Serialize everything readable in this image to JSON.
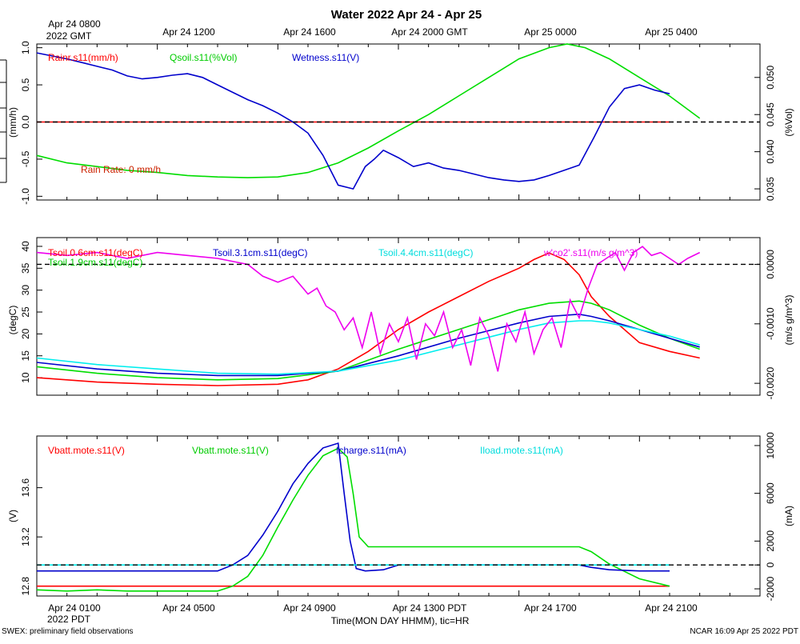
{
  "title": "Water 2022 Apr 24 - Apr 25",
  "gmt_ticks": [
    "Apr 24 0800",
    "Apr 24 1200",
    "Apr 24 1600",
    "Apr 24 2000 GMT",
    "Apr 25 0000",
    "Apr 25 0400"
  ],
  "gmt_year": "2022 GMT",
  "pdt_ticks": [
    "Apr 24 0100",
    "Apr 24 0500",
    "Apr 24 0900",
    "Apr 24 1300 PDT",
    "Apr 24 1700",
    "Apr 24 2100"
  ],
  "pdt_year": "2022 PDT",
  "xlabel": "Time(MON DAY HHMM), tic=HR",
  "footer_left": "SWEX: preliminary field observations",
  "footer_right": "NCAR 16:09 Apr 25 2022 PDT",
  "x_range_hours": [
    0,
    24
  ],
  "chart_data": [
    {
      "type": "line",
      "panel": "water",
      "ylabel_left": "(mm/h)",
      "ylabel_right": "(%Vol)",
      "ylim_left": [
        -1.05,
        1.05
      ],
      "ylim_right": [
        0.0335,
        0.0545
      ],
      "yticks_left": [
        "-1.0",
        "-0.5",
        "0.0",
        "0.5",
        "1.0"
      ],
      "yticks_right": [
        "0.035",
        "0.040",
        "0.045",
        "0.050"
      ],
      "annotation": "Rain Rate: 0 mm/h",
      "zero_line_left": 0,
      "series": [
        {
          "name": "Rainr.s11(mm/h)",
          "color": "#ff0000",
          "axis": "left",
          "x": [
            0,
            18,
            18.4,
            21
          ],
          "y": [
            0,
            0,
            0,
            0
          ]
        },
        {
          "name": "Qsoil.s11(%Vol)",
          "color": "#00dd00",
          "axis": "right",
          "x": [
            0,
            1,
            2,
            3,
            4,
            5,
            6,
            7,
            8,
            9,
            10,
            11,
            12,
            13,
            14,
            15,
            16,
            17,
            17.6,
            18.2,
            19,
            20,
            21,
            22
          ],
          "y": [
            0.0395,
            0.0385,
            0.038,
            0.0375,
            0.0372,
            0.0368,
            0.0366,
            0.0365,
            0.0366,
            0.0372,
            0.0385,
            0.0405,
            0.0428,
            0.045,
            0.0475,
            0.05,
            0.0525,
            0.054,
            0.0545,
            0.054,
            0.0525,
            0.05,
            0.0475,
            0.0445
          ]
        },
        {
          "name": "Wetness.s11(V)",
          "color": "#0000cc",
          "axis": "left",
          "x": [
            0,
            1,
            1.5,
            2,
            2.5,
            3,
            3.5,
            4,
            4.5,
            5,
            5.5,
            6,
            6.5,
            7,
            7.5,
            8,
            8.5,
            9,
            9.5,
            10,
            10.5,
            10.9,
            11.2,
            11.5,
            12,
            12.5,
            13,
            13.5,
            14,
            14.5,
            15,
            15.5,
            16,
            16.5,
            17,
            17.5,
            18,
            18.5,
            19,
            19.5,
            20,
            20.5,
            21
          ],
          "y": [
            0.93,
            0.85,
            0.8,
            0.75,
            0.7,
            0.62,
            0.58,
            0.6,
            0.63,
            0.65,
            0.6,
            0.5,
            0.4,
            0.3,
            0.22,
            0.12,
            0.0,
            -0.15,
            -0.45,
            -0.85,
            -0.9,
            -0.6,
            -0.5,
            -0.38,
            -0.48,
            -0.6,
            -0.55,
            -0.62,
            -0.65,
            -0.7,
            -0.75,
            -0.78,
            -0.8,
            -0.78,
            -0.72,
            -0.65,
            -0.58,
            -0.2,
            0.2,
            0.45,
            0.5,
            0.43,
            0.38
          ]
        }
      ]
    },
    {
      "type": "line",
      "panel": "soil-temperature",
      "ylabel_left": "(degC)",
      "ylabel_right": "(m/s g/m^3)",
      "ylim_left": [
        6,
        42
      ],
      "ylim_right": [
        -0.0022,
        0.00045
      ],
      "yticks_left": [
        "10",
        "15",
        "20",
        "25",
        "30",
        "35",
        "40"
      ],
      "yticks_right": [
        "-0.0020",
        "-0.0010",
        "0.0000"
      ],
      "zero_line_right": 0,
      "series": [
        {
          "name": "Tsoil.0.6cm.s11(degC)",
          "color": "#ff0000",
          "axis": "left",
          "x": [
            0,
            2,
            4,
            6,
            8,
            9,
            10,
            11,
            12,
            13,
            14,
            15,
            16,
            16.5,
            17,
            17.5,
            18,
            18.4,
            19,
            20,
            21,
            22
          ],
          "y": [
            10,
            9.0,
            8.5,
            8.2,
            8.5,
            9.5,
            12,
            16,
            21,
            25,
            28.5,
            32,
            35,
            37,
            38.5,
            37,
            33.5,
            28.5,
            24,
            18,
            16,
            14.5
          ]
        },
        {
          "name": "Tsoil.1.9cm.s11(degC)",
          "color": "#00dd00",
          "axis": "left",
          "x": [
            0,
            2,
            4,
            6,
            8,
            10,
            12,
            14,
            16,
            17,
            18,
            18.4,
            19,
            20,
            21,
            22
          ],
          "y": [
            12.5,
            11,
            10,
            9.5,
            9.8,
            11.5,
            16.5,
            21,
            25.5,
            27,
            27.5,
            27,
            25.5,
            22,
            19,
            16.5
          ]
        },
        {
          "name": "Tsoil.3.1cm.s11(degC)",
          "color": "#0000cc",
          "axis": "left",
          "x": [
            0,
            2,
            4,
            6,
            8,
            10,
            12,
            14,
            16,
            17,
            18,
            18.4,
            19,
            20,
            21,
            22
          ],
          "y": [
            13.5,
            12,
            11,
            10.5,
            10.5,
            11.5,
            15,
            19,
            22.5,
            24,
            24.5,
            24,
            23,
            21,
            19,
            17
          ]
        },
        {
          "name": "Tsoil.4.4cm.s11(degC)",
          "color": "#00eeee",
          "axis": "left",
          "x": [
            0,
            2,
            4,
            6,
            8,
            10,
            12,
            14,
            16,
            17,
            18,
            18.4,
            19,
            20,
            21,
            22
          ],
          "y": [
            14.5,
            13,
            12,
            11,
            10.8,
            11.5,
            14,
            17.5,
            21,
            22.5,
            23,
            23,
            22.5,
            21,
            19.5,
            17.5
          ]
        },
        {
          "name": "w'co2'.s11(m/s g/m^3)",
          "color": "#ee00ee",
          "axis": "right",
          "x": [
            0,
            1,
            2,
            3,
            4,
            5,
            6,
            7,
            7.5,
            8,
            8.5,
            9,
            9.3,
            9.6,
            9.9,
            10.2,
            10.5,
            10.8,
            11.1,
            11.4,
            11.7,
            12,
            12.3,
            12.6,
            12.9,
            13.2,
            13.5,
            13.8,
            14.1,
            14.4,
            14.7,
            15,
            15.3,
            15.6,
            15.9,
            16.2,
            16.5,
            16.8,
            17.1,
            17.4,
            17.7,
            18,
            18.3,
            18.6,
            18.9,
            19.2,
            19.5,
            19.8,
            20.1,
            20.4,
            20.7,
            21,
            21.3,
            21.6,
            22
          ],
          "y": [
            0.0002,
            0.00015,
            0.0002,
            0.0001,
            0.0002,
            0.00015,
            0.0001,
            0.0,
            -0.0002,
            -0.0003,
            -0.0002,
            -0.0005,
            -0.0004,
            -0.0007,
            -0.0008,
            -0.0011,
            -0.0009,
            -0.0014,
            -0.0008,
            -0.0015,
            -0.001,
            -0.0013,
            -0.0009,
            -0.0016,
            -0.001,
            -0.0012,
            -0.0008,
            -0.0014,
            -0.0011,
            -0.0017,
            -0.0009,
            -0.0012,
            -0.0018,
            -0.001,
            -0.0013,
            -0.0008,
            -0.0015,
            -0.0011,
            -0.0009,
            -0.0014,
            -0.0006,
            -0.0009,
            -0.0004,
            0.0,
            0.0001,
            0.0002,
            -0.0001,
            0.0002,
            0.0003,
            0.00015,
            0.0002,
            0.0001,
            0.0,
            0.0001,
            0.0002
          ]
        }
      ]
    },
    {
      "type": "line",
      "panel": "power",
      "ylabel_left": "(V)",
      "ylabel_right": "(mA)",
      "ylim_left": [
        12.72,
        14.02
      ],
      "ylim_right": [
        -2600,
        10800
      ],
      "yticks_left": [
        "12.8",
        "13.2",
        "13.6"
      ],
      "yticks_right": [
        "-2000",
        "0",
        "2000",
        "6000",
        "10000"
      ],
      "zero_line_right": 0,
      "series": [
        {
          "name": "Vbatt.mote.s11(V)",
          "color": "#ff0000",
          "axis": "left",
          "x": [
            0,
            21
          ],
          "y": [
            12.8,
            12.8
          ]
        },
        {
          "name": "Vbatt.mote.s11(V)",
          "color": "#00dd00",
          "axis": "left",
          "x": [
            0,
            1,
            2,
            3,
            4,
            5,
            6,
            6.5,
            7,
            7.5,
            8,
            8.5,
            9,
            9.5,
            10,
            10.3,
            10.5,
            10.7,
            11,
            12,
            13,
            14,
            15,
            16,
            17,
            17.5,
            18,
            18.4,
            19,
            20,
            21
          ],
          "y": [
            12.77,
            12.76,
            12.77,
            12.76,
            12.76,
            12.76,
            12.76,
            12.8,
            12.88,
            13.05,
            13.28,
            13.5,
            13.7,
            13.86,
            13.92,
            13.85,
            13.55,
            13.2,
            13.12,
            13.12,
            13.12,
            13.12,
            13.12,
            13.12,
            13.12,
            13.12,
            13.12,
            13.08,
            12.98,
            12.86,
            12.8
          ]
        },
        {
          "name": "Icharge.s11(mA)",
          "color": "#0000cc",
          "axis": "right",
          "x": [
            0,
            1,
            2,
            3,
            4,
            5,
            6,
            6.5,
            7,
            7.5,
            8,
            8.5,
            9,
            9.5,
            10,
            10.2,
            10.4,
            10.6,
            10.9,
            11.5,
            12,
            13,
            14,
            15,
            16,
            17,
            18,
            18.4,
            19,
            20,
            21
          ],
          "y": [
            -500,
            -500,
            -500,
            -500,
            -500,
            -500,
            -500,
            0,
            800,
            2500,
            4500,
            6800,
            8500,
            9800,
            10200,
            6000,
            2000,
            -300,
            -500,
            -400,
            0,
            0,
            0,
            0,
            0,
            0,
            0,
            -200,
            -400,
            -500,
            -500
          ]
        },
        {
          "name": "Iload.mote.s11(mA)",
          "color": "#00eeee",
          "axis": "right",
          "x": [
            0,
            21
          ],
          "y": [
            0,
            0
          ]
        }
      ]
    }
  ],
  "legends": {
    "water": [
      "Rainr.s11(mm/h)",
      "Qsoil.s11(%Vol)",
      "Wetness.s11(V)"
    ],
    "soil": [
      "Tsoil.0.6cm.s11(degC)",
      "Tsoil.1.9cm.s11(degC)",
      "Tsoil.3.1cm.s11(degC)",
      "Tsoil.4.4cm.s11(degC)",
      "w'co2'.s11(m/s g/m^3)"
    ],
    "power": [
      "Vbatt.mote.s11(V)",
      "Vbatt.mote.s11(V)",
      "Icharge.s11(mA)",
      "Iload.mote.s11(mA)"
    ]
  }
}
